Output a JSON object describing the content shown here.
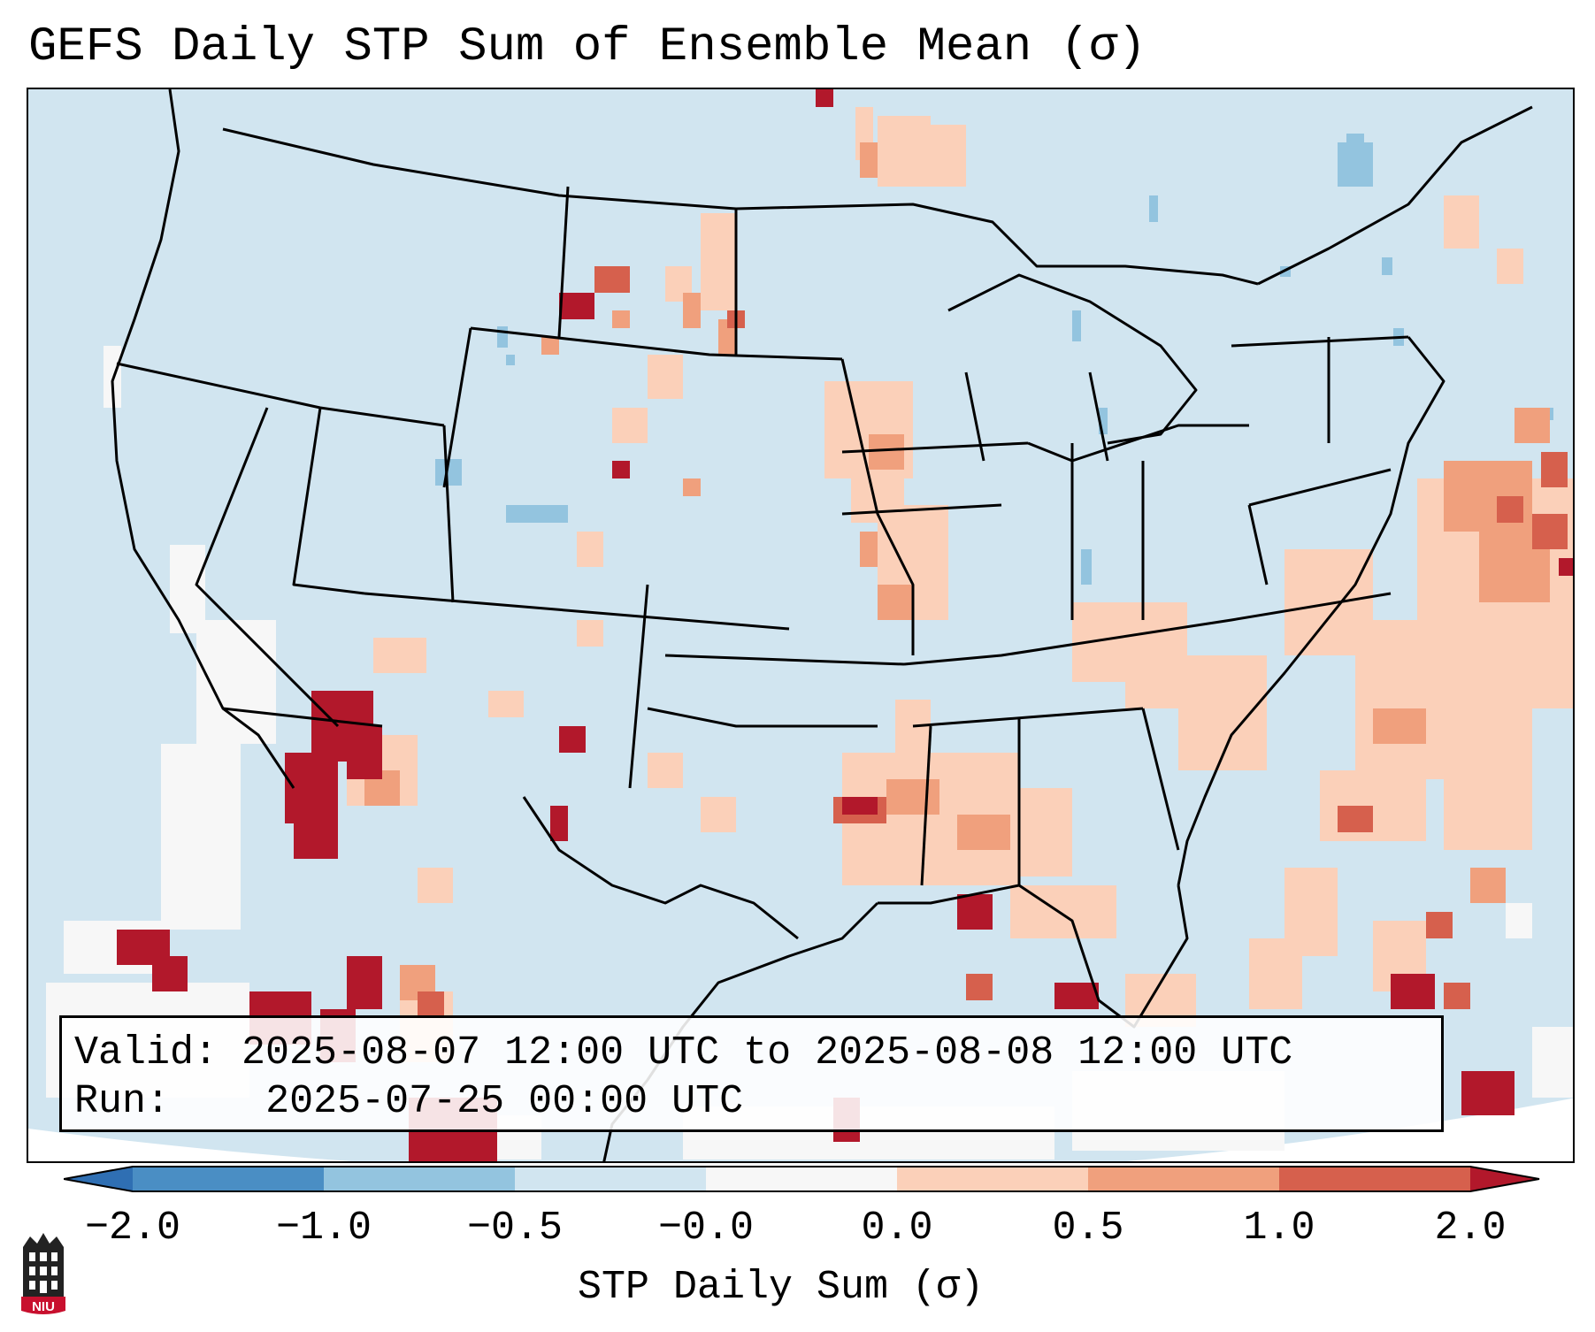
{
  "title": "GEFS Daily STP Sum of Ensemble Mean (σ)",
  "info": {
    "valid_label": "Valid:",
    "valid_value": "2025-08-07 12:00 UTC to 2025-08-08 12:00 UTC",
    "run_label": "Run:",
    "run_value": "2025-07-25 00:00 UTC"
  },
  "colorbar": {
    "label": "STP Daily Sum (σ)",
    "ticks": [
      "−2.0",
      "−1.0",
      "−0.5",
      "−0.0",
      "0.0",
      "0.5",
      "1.0",
      "2.0"
    ],
    "colors": {
      "below_min": "#2f6fb3",
      "bin_neg2_neg1": "#4a8ec4",
      "bin_neg1_neg05": "#93c4df",
      "bin_neg05_0": "#d1e5f0",
      "bin_zero": "#f7f7f7",
      "bin_0_05": "#fbd0b9",
      "bin_05_1": "#f0a07d",
      "bin_1_2": "#d6604d",
      "above_max": "#b2182b"
    }
  },
  "map": {
    "region": "Contiguous United States, northern Mexico and the Gulf of Mexico",
    "background_color": "#d1e5f0",
    "border_color": "#000000"
  },
  "logo": {
    "text": "NIU",
    "color": "#c8102e"
  }
}
